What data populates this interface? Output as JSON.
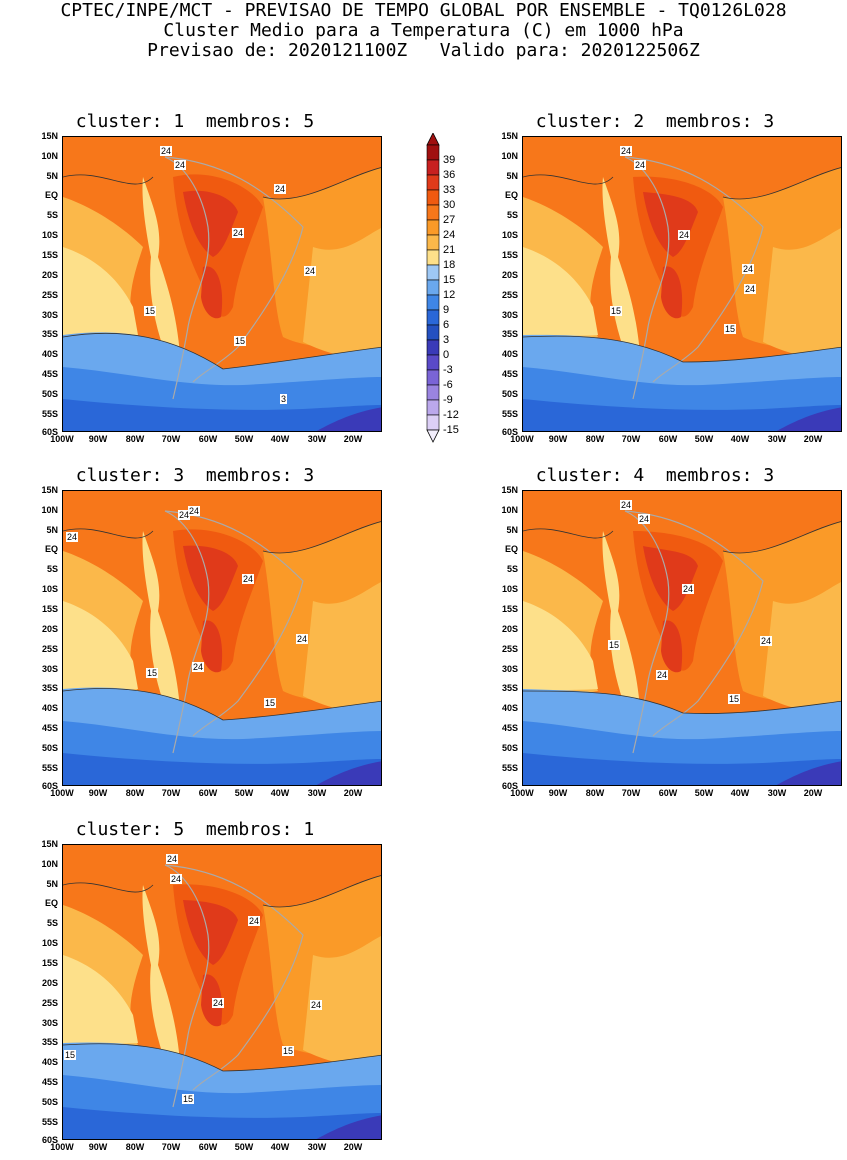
{
  "header": {
    "line1": "CPTEC/INPE/MCT - PREVISAO DE TEMPO GLOBAL POR ENSEMBLE - TQ0126L028",
    "line2": "Cluster Medio para a Temperatura (C) em 1000 hPa",
    "line3": "Previsao de: 2020121100Z   Valido para: 2020122506Z"
  },
  "axes": {
    "y_ticks": [
      "15N",
      "10N",
      "5N",
      "EQ",
      "5S",
      "10S",
      "15S",
      "20S",
      "25S",
      "30S",
      "35S",
      "40S",
      "45S",
      "50S",
      "55S",
      "60S"
    ],
    "x_ticks": [
      "100W",
      "90W",
      "80W",
      "70W",
      "60W",
      "50W",
      "40W",
      "30W",
      "20W"
    ]
  },
  "panels": [
    {
      "title": "cluster: 1  membros: 5",
      "contour_labels": [
        "24",
        "24",
        "24",
        "24",
        "24",
        "15",
        "15",
        "3"
      ]
    },
    {
      "title": "cluster: 2  membros: 3",
      "contour_labels": [
        "24",
        "24",
        "24",
        "24",
        "24",
        "15",
        "15"
      ]
    },
    {
      "title": "cluster: 3  membros: 3",
      "contour_labels": [
        "24",
        "24",
        "24",
        "24",
        "24",
        "24",
        "15",
        "15"
      ]
    },
    {
      "title": "cluster: 4  membros: 3",
      "contour_labels": [
        "24",
        "24",
        "24",
        "24",
        "24",
        "15",
        "15"
      ]
    },
    {
      "title": "cluster: 5  membros: 1",
      "contour_labels": [
        "24",
        "24",
        "24",
        "24",
        "24",
        "15",
        "15",
        "15"
      ]
    }
  ],
  "legend": {
    "levels": [
      "39",
      "36",
      "33",
      "30",
      "27",
      "24",
      "21",
      "18",
      "15",
      "12",
      "9",
      "6",
      "3",
      "0",
      "-3",
      "-6",
      "-9",
      "-12",
      "-15"
    ],
    "colors": [
      "#a01010",
      "#c82020",
      "#e03a1a",
      "#f05a10",
      "#f7771a",
      "#fa9a28",
      "#fbb84a",
      "#fde08a",
      "#9ec8f5",
      "#6aa8ee",
      "#3f86e6",
      "#2a67d8",
      "#2450c0",
      "#3a3ab8",
      "#5a4ac8",
      "#7a64d6",
      "#9a84e0",
      "#bba8ec",
      "#dccff6"
    ]
  }
}
